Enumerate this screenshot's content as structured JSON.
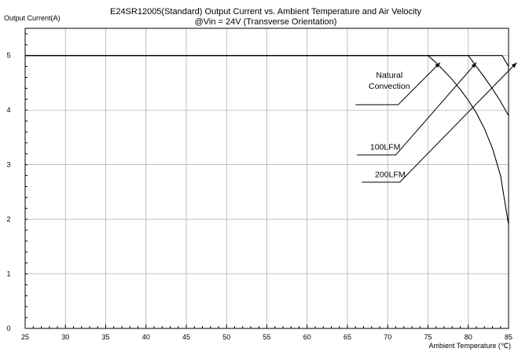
{
  "chart_data": {
    "type": "line",
    "title": "E24SR12005(Standard)  Output Current vs. Ambient Temperature and Air Velocity",
    "subtitle": "@Vin = 24V (Transverse Orientation)",
    "ylabel": "Output Current(A)",
    "xlabel": "Ambient Temperature (℃)",
    "xlim": [
      25,
      85
    ],
    "ylim": [
      0,
      5.5
    ],
    "xticks": [
      25,
      30,
      35,
      40,
      45,
      50,
      55,
      60,
      65,
      70,
      75,
      80,
      85
    ],
    "yticks": [
      0,
      1,
      2,
      3,
      4,
      5
    ],
    "x_minor_step": 1,
    "y_minor_step": 0.2,
    "grid": true,
    "series": [
      {
        "name": "Natural Convection",
        "points": [
          [
            25,
            5.0
          ],
          [
            75,
            5.0
          ],
          [
            76,
            4.87
          ],
          [
            77,
            4.72
          ],
          [
            78,
            4.56
          ],
          [
            79,
            4.38
          ],
          [
            80,
            4.18
          ],
          [
            81,
            3.95
          ],
          [
            82,
            3.66
          ],
          [
            83,
            3.3
          ],
          [
            84,
            2.8
          ],
          [
            85,
            1.9
          ]
        ]
      },
      {
        "name": "100LFM",
        "points": [
          [
            25,
            5.0
          ],
          [
            80,
            5.0
          ],
          [
            81,
            4.8
          ],
          [
            82,
            4.6
          ],
          [
            83,
            4.39
          ],
          [
            84,
            4.16
          ],
          [
            85,
            3.9
          ]
        ]
      },
      {
        "name": "200LFM",
        "points": [
          [
            25,
            5.0
          ],
          [
            84.2,
            5.0
          ],
          [
            85,
            4.8
          ]
        ]
      }
    ],
    "annotations": [
      {
        "lines": [
          "Natural",
          "Convection"
        ],
        "target_series": "Natural Convection",
        "text_at": [
          70.2,
          4.45
        ],
        "arrow_from": [
          71.3,
          4.1
        ],
        "arrow_to": [
          76.5,
          4.87
        ]
      },
      {
        "lines": [
          "100LFM"
        ],
        "target_series": "100LFM",
        "text_at": [
          69.7,
          3.33
        ],
        "arrow_from": [
          71.0,
          3.18
        ],
        "arrow_to": [
          81.0,
          4.87
        ]
      },
      {
        "lines": [
          "200LFM"
        ],
        "target_series": "200LFM",
        "text_at": [
          70.3,
          2.83
        ],
        "arrow_from": [
          71.5,
          2.68
        ],
        "arrow_to": [
          86.0,
          4.87
        ]
      }
    ]
  }
}
